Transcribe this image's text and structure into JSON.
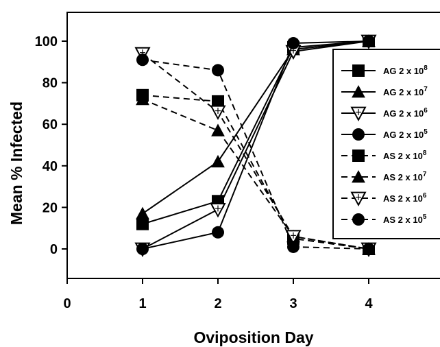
{
  "chart_data": {
    "type": "line",
    "title": "",
    "xlabel": "Oviposition Day",
    "ylabel": "Mean % Infected",
    "xlim": [
      0,
      4.9
    ],
    "ylim": [
      -12,
      115
    ],
    "xticks": [
      "0",
      "1",
      "2",
      "3",
      "4"
    ],
    "yticks": [
      "0",
      "20",
      "40",
      "60",
      "80",
      "100"
    ],
    "legend_position": "right",
    "grid": false,
    "x": [
      1,
      2,
      3,
      4
    ],
    "series": [
      {
        "name": "AG 2 x 10",
        "exp": "8",
        "line": "solid",
        "marker": "square",
        "values": [
          12,
          23,
          97,
          100
        ]
      },
      {
        "name": "AG 2 x 10",
        "exp": "7",
        "line": "solid",
        "marker": "triangle-up",
        "values": [
          17,
          42,
          96,
          100
        ]
      },
      {
        "name": "AG 2 x 10",
        "exp": "6",
        "line": "solid",
        "marker": "triangle-down",
        "values": [
          0,
          19,
          95,
          100
        ]
      },
      {
        "name": "AG 2 x 10",
        "exp": "5",
        "line": "solid",
        "marker": "circle",
        "values": [
          0,
          8,
          99,
          100
        ]
      },
      {
        "name": "AS 2 x 10",
        "exp": "8",
        "line": "dashed",
        "marker": "square",
        "values": [
          74,
          71,
          5,
          0
        ]
      },
      {
        "name": "AS 2 x 10",
        "exp": "7",
        "line": "dashed",
        "marker": "triangle-up",
        "values": [
          72,
          57,
          6,
          0
        ]
      },
      {
        "name": "AS 2 x 10",
        "exp": "6",
        "line": "dashed",
        "marker": "triangle-down",
        "values": [
          94,
          66,
          6,
          0
        ]
      },
      {
        "name": "AS 2 x 10",
        "exp": "5",
        "line": "dashed",
        "marker": "circle",
        "values": [
          91,
          86,
          1,
          0
        ]
      }
    ]
  }
}
